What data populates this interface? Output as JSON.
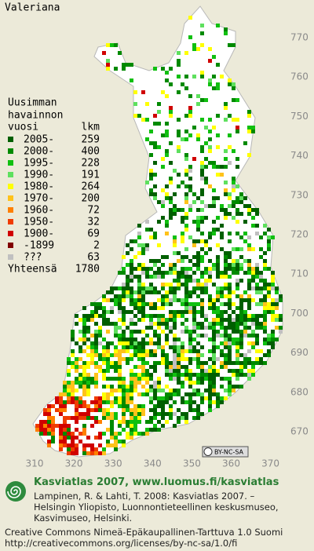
{
  "title": "Valeriana",
  "legend": {
    "heading": [
      "Uusimman",
      "havainnon"
    ],
    "columns": [
      "vuosi",
      "lkm"
    ],
    "rows": [
      {
        "label": "2005-",
        "count": 259,
        "color": "#005f00"
      },
      {
        "label": "2000-",
        "count": 400,
        "color": "#008a00"
      },
      {
        "label": "1995-",
        "count": 228,
        "color": "#10c010"
      },
      {
        "label": "1990-",
        "count": 191,
        "color": "#5ee05e"
      },
      {
        "label": "1980-",
        "count": 264,
        "color": "#ffff00"
      },
      {
        "label": "1970-",
        "count": 200,
        "color": "#ffc21a"
      },
      {
        "label": "1960-",
        "count": 72,
        "color": "#ff8000"
      },
      {
        "label": "1950-",
        "count": 32,
        "color": "#f03c00"
      },
      {
        "label": "1900-",
        "count": 69,
        "color": "#d00000"
      },
      {
        "label": "-1899",
        "count": 2,
        "color": "#800000"
      },
      {
        "label": "???",
        "count": 63,
        "color": "#c0c0c0"
      }
    ],
    "total_label": "Yhteensä",
    "total": 1780
  },
  "x_axis": [
    310,
    320,
    330,
    340,
    350,
    360,
    370
  ],
  "y_axis": [
    770,
    760,
    750,
    740,
    730,
    720,
    710,
    700,
    690,
    680,
    670
  ],
  "badge": "BY-NC-SA",
  "footer": {
    "project": "Kasviatlas 2007, www.luomus.fi/kasviatlas",
    "citation": [
      "Lampinen, R. & Lahti, T. 2008: Kasviatlas 2007. –",
      "Helsingin Yliopisto, Luonnontieteellinen keskusmuseo,",
      "Kasvimuseo, Helsinki."
    ],
    "license": [
      "Creative Commons Nimeä-Epäkaupallinen-Tarttuva 1.0 Suomi",
      "http://creativecommons.org/licenses/by-nc-sa/1.0/fi"
    ]
  }
}
